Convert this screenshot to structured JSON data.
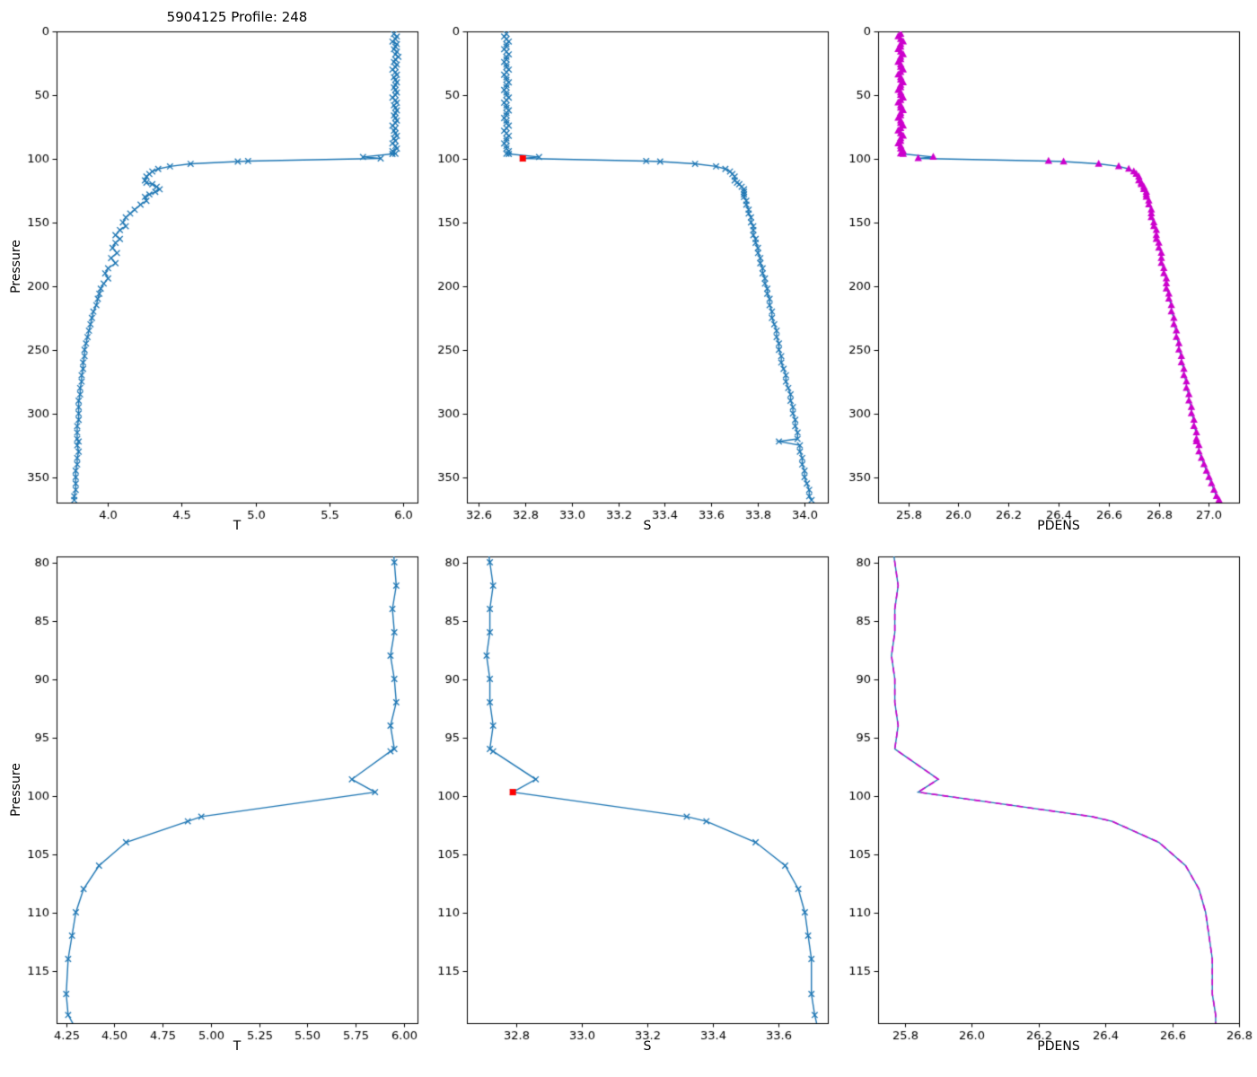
{
  "figure": {
    "title": "5904125 Profile: 248",
    "background": "#ffffff"
  },
  "chart_data": {
    "type": "line",
    "title": "5904125 Profile: 248",
    "colors": {
      "line": "#1f77b4",
      "magenta": "#cc00cc",
      "red": "#ff0000"
    },
    "red_marker": {
      "p": 99.7,
      "S": 32.79
    },
    "profile": {
      "p": [
        2,
        4,
        6,
        8,
        10,
        12,
        14,
        16,
        18,
        20,
        22,
        24,
        26,
        28,
        30,
        32,
        34,
        36,
        38,
        40,
        42,
        44,
        46,
        48,
        50,
        52,
        54,
        56,
        58,
        60,
        62,
        64,
        66,
        68,
        70,
        72,
        74,
        76,
        78,
        80,
        82,
        84,
        86,
        88,
        90,
        92,
        94,
        96,
        96.2,
        98.6,
        99.7,
        101.8,
        102.2,
        104,
        106,
        108,
        110,
        112,
        114,
        117,
        118.8,
        120,
        122,
        124,
        126,
        128,
        130,
        133,
        136,
        140,
        143,
        146,
        150,
        153,
        156,
        160,
        163,
        166,
        170,
        174,
        178,
        182,
        186,
        190,
        194,
        198,
        202,
        206,
        210,
        215,
        220,
        225,
        230,
        235,
        240,
        245,
        250,
        255,
        260,
        265,
        270,
        275,
        280,
        285,
        290,
        295,
        300,
        305,
        310,
        315,
        320,
        322,
        325,
        330,
        335,
        340,
        345,
        350,
        355,
        360,
        365,
        368
      ],
      "T": [
        5.94,
        5.96,
        5.95,
        5.93,
        5.96,
        5.95,
        5.94,
        5.96,
        5.95,
        5.97,
        5.95,
        5.94,
        5.96,
        5.95,
        5.93,
        5.95,
        5.96,
        5.94,
        5.95,
        5.96,
        5.95,
        5.94,
        5.95,
        5.96,
        5.95,
        5.93,
        5.95,
        5.96,
        5.94,
        5.95,
        5.96,
        5.95,
        5.94,
        5.95,
        5.96,
        5.95,
        5.93,
        5.95,
        5.94,
        5.95,
        5.96,
        5.94,
        5.95,
        5.93,
        5.95,
        5.96,
        5.93,
        5.95,
        5.93,
        5.73,
        5.85,
        4.95,
        4.88,
        4.56,
        4.42,
        4.34,
        4.3,
        4.28,
        4.26,
        4.25,
        4.26,
        4.3,
        4.33,
        4.35,
        4.32,
        4.28,
        4.25,
        4.26,
        4.22,
        4.18,
        4.15,
        4.12,
        4.1,
        4.12,
        4.08,
        4.05,
        4.08,
        4.05,
        4.03,
        4.06,
        4.02,
        4.05,
        4.0,
        3.98,
        4.0,
        3.97,
        3.95,
        3.94,
        3.93,
        3.92,
        3.9,
        3.89,
        3.88,
        3.87,
        3.86,
        3.85,
        3.84,
        3.84,
        3.83,
        3.83,
        3.82,
        3.82,
        3.81,
        3.81,
        3.8,
        3.8,
        3.8,
        3.8,
        3.79,
        3.79,
        3.79,
        3.8,
        3.79,
        3.8,
        3.79,
        3.79,
        3.78,
        3.78,
        3.78,
        3.78,
        3.77,
        3.77
      ],
      "S": [
        32.72,
        32.71,
        32.72,
        32.73,
        32.72,
        32.72,
        32.71,
        32.72,
        32.73,
        32.72,
        32.72,
        32.71,
        32.72,
        32.72,
        32.73,
        32.72,
        32.71,
        32.72,
        32.72,
        32.73,
        32.72,
        32.72,
        32.71,
        32.72,
        32.72,
        32.73,
        32.72,
        32.71,
        32.72,
        32.72,
        32.73,
        32.72,
        32.72,
        32.71,
        32.72,
        32.72,
        32.73,
        32.72,
        32.71,
        32.72,
        32.73,
        32.72,
        32.72,
        32.71,
        32.72,
        32.72,
        32.73,
        32.72,
        32.73,
        32.86,
        32.79,
        33.32,
        33.38,
        33.53,
        33.62,
        33.66,
        33.68,
        33.69,
        33.7,
        33.7,
        33.71,
        33.72,
        33.73,
        33.74,
        33.74,
        33.74,
        33.74,
        33.75,
        33.75,
        33.76,
        33.76,
        33.77,
        33.77,
        33.78,
        33.78,
        33.78,
        33.79,
        33.79,
        33.8,
        33.8,
        33.81,
        33.81,
        33.82,
        33.82,
        33.83,
        33.83,
        33.84,
        33.84,
        33.85,
        33.85,
        33.86,
        33.86,
        33.87,
        33.88,
        33.88,
        33.89,
        33.89,
        33.9,
        33.9,
        33.91,
        33.92,
        33.92,
        33.93,
        33.94,
        33.94,
        33.95,
        33.95,
        33.96,
        33.96,
        33.97,
        33.97,
        33.89,
        33.98,
        33.98,
        33.99,
        33.99,
        34.0,
        34.0,
        34.01,
        34.02,
        34.02,
        34.03
      ],
      "PDENS": [
        25.77,
        25.76,
        25.77,
        25.78,
        25.77,
        25.77,
        25.76,
        25.77,
        25.78,
        25.77,
        25.77,
        25.76,
        25.77,
        25.77,
        25.78,
        25.77,
        25.76,
        25.77,
        25.77,
        25.78,
        25.77,
        25.77,
        25.76,
        25.77,
        25.77,
        25.78,
        25.77,
        25.76,
        25.77,
        25.77,
        25.78,
        25.77,
        25.77,
        25.76,
        25.77,
        25.77,
        25.78,
        25.77,
        25.76,
        25.77,
        25.78,
        25.77,
        25.77,
        25.76,
        25.77,
        25.77,
        25.78,
        25.77,
        25.78,
        25.9,
        25.84,
        26.36,
        26.42,
        26.56,
        26.64,
        26.68,
        26.7,
        26.71,
        26.72,
        26.72,
        26.73,
        26.73,
        26.74,
        26.74,
        26.75,
        26.75,
        26.75,
        26.76,
        26.76,
        26.77,
        26.77,
        26.77,
        26.78,
        26.78,
        26.79,
        26.79,
        26.79,
        26.8,
        26.8,
        26.81,
        26.81,
        26.81,
        26.82,
        26.82,
        26.83,
        26.83,
        26.83,
        26.84,
        26.84,
        26.85,
        26.85,
        26.86,
        26.86,
        26.87,
        26.87,
        26.88,
        26.88,
        26.89,
        26.89,
        26.9,
        26.9,
        26.91,
        26.91,
        26.92,
        26.92,
        26.93,
        26.93,
        26.94,
        26.94,
        26.95,
        26.95,
        26.95,
        26.96,
        26.96,
        26.97,
        26.98,
        26.99,
        27.0,
        27.01,
        27.02,
        27.03,
        27.04
      ]
    },
    "subplots": [
      {
        "row": 0,
        "col": 0,
        "x_field": "T",
        "xlabel": "T",
        "ylabel": "Pressure",
        "xlim": [
          3.65,
          6.1
        ],
        "xticks": [
          4.0,
          4.5,
          5.0,
          5.5,
          6.0
        ],
        "xtick_labels": [
          "4.0",
          "4.5",
          "5.0",
          "5.5",
          "6.0"
        ],
        "ylim": [
          0,
          370
        ],
        "yticks": [
          0,
          50,
          100,
          150,
          200,
          250,
          300,
          350
        ],
        "ytick_labels": [
          "0",
          "50",
          "100",
          "150",
          "200",
          "250",
          "300",
          "350"
        ],
        "style": "x"
      },
      {
        "row": 0,
        "col": 1,
        "x_field": "S",
        "xlabel": "S",
        "xlim": [
          32.55,
          34.1
        ],
        "xticks": [
          32.6,
          32.8,
          33.0,
          33.2,
          33.4,
          33.6,
          33.8,
          34.0
        ],
        "xtick_labels": [
          "32.6",
          "32.8",
          "33.0",
          "33.2",
          "33.4",
          "33.6",
          "33.8",
          "34.0"
        ],
        "ylim": [
          0,
          370
        ],
        "yticks": [
          0,
          50,
          100,
          150,
          200,
          250,
          300,
          350
        ],
        "ytick_labels": [
          "0",
          "50",
          "100",
          "150",
          "200",
          "250",
          "300",
          "350"
        ],
        "style": "x",
        "red_marker": true
      },
      {
        "row": 0,
        "col": 2,
        "x_field": "PDENS",
        "xlabel": "PDENS",
        "xlim": [
          25.68,
          27.12
        ],
        "xticks": [
          25.8,
          26.0,
          26.2,
          26.4,
          26.6,
          26.8,
          27.0
        ],
        "xtick_labels": [
          "25.8",
          "26.0",
          "26.2",
          "26.4",
          "26.6",
          "26.8",
          "27.0"
        ],
        "ylim": [
          0,
          370
        ],
        "yticks": [
          0,
          50,
          100,
          150,
          200,
          250,
          300,
          350
        ],
        "ytick_labels": [
          "0",
          "50",
          "100",
          "150",
          "200",
          "250",
          "300",
          "350"
        ],
        "style": "tri"
      },
      {
        "row": 1,
        "col": 0,
        "x_field": "T",
        "xlabel": "T",
        "ylabel": "Pressure",
        "xlim": [
          4.2,
          6.07
        ],
        "xticks": [
          4.25,
          4.5,
          4.75,
          5.0,
          5.25,
          5.5,
          5.75,
          6.0
        ],
        "xtick_labels": [
          "4.25",
          "4.50",
          "4.75",
          "5.00",
          "5.25",
          "5.50",
          "5.75",
          "6.00"
        ],
        "ylim": [
          79.5,
          119.5
        ],
        "yticks": [
          80,
          85,
          90,
          95,
          100,
          105,
          110,
          115
        ],
        "ytick_labels": [
          "80",
          "85",
          "90",
          "95",
          "100",
          "105",
          "110",
          "115"
        ],
        "style": "x"
      },
      {
        "row": 1,
        "col": 1,
        "x_field": "S",
        "xlabel": "S",
        "xlim": [
          32.65,
          33.75
        ],
        "xticks": [
          32.8,
          33.0,
          33.2,
          33.4,
          33.6
        ],
        "xtick_labels": [
          "32.8",
          "33.0",
          "33.2",
          "33.4",
          "33.6"
        ],
        "ylim": [
          79.5,
          119.5
        ],
        "yticks": [
          80,
          85,
          90,
          95,
          100,
          105,
          110,
          115
        ],
        "ytick_labels": [
          "80",
          "85",
          "90",
          "95",
          "100",
          "105",
          "110",
          "115"
        ],
        "style": "x",
        "red_marker": true
      },
      {
        "row": 1,
        "col": 2,
        "x_field": "PDENS",
        "xlabel": "PDENS",
        "xlim": [
          25.72,
          26.8
        ],
        "xticks": [
          25.8,
          26.0,
          26.2,
          26.4,
          26.6,
          26.8
        ],
        "xtick_labels": [
          "25.8",
          "26.0",
          "26.2",
          "26.4",
          "26.6",
          "26.8"
        ],
        "ylim": [
          79.5,
          119.5
        ],
        "yticks": [
          80,
          85,
          90,
          95,
          100,
          105,
          110,
          115
        ],
        "ytick_labels": [
          "80",
          "85",
          "90",
          "95",
          "100",
          "105",
          "110",
          "115"
        ],
        "style": "dash"
      }
    ]
  }
}
